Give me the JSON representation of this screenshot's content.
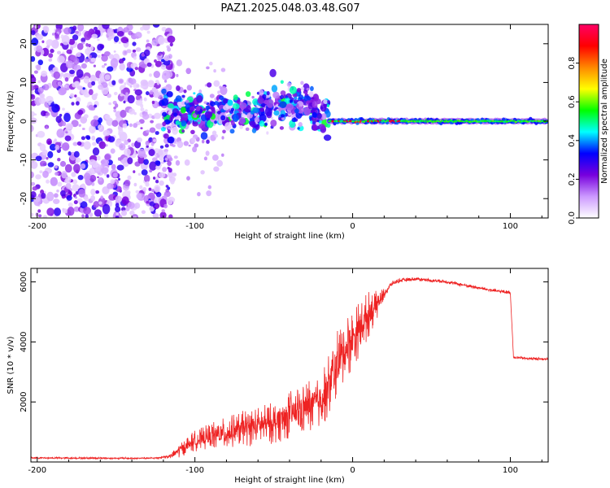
{
  "title": "PAZ1.2025.048.03.48.G07",
  "colors": {
    "snr_line": "#ee2222",
    "axis": "#000000"
  },
  "chart_data": [
    {
      "type": "heatmap",
      "xlabel": "Height of straight line (km)",
      "ylabel": "Frequency (Hz)",
      "xlim": [
        -204,
        124
      ],
      "ylim": [
        -25,
        25
      ],
      "xticks": [
        -200,
        -100,
        0,
        100
      ],
      "xtick_labels": [
        "-200",
        "-100",
        "0",
        "100"
      ],
      "yticks": [
        -20,
        -10,
        0,
        10,
        20
      ],
      "ytick_labels": [
        "-20",
        "-10",
        "0",
        "10",
        "20"
      ],
      "colorbar": {
        "label": "Normalized spectral amplitude",
        "range": [
          0,
          1
        ],
        "ticks": [
          0.0,
          0.2,
          0.4,
          0.6,
          0.8
        ],
        "tick_labels": [
          "0.0",
          "0.2",
          "0.4",
          "0.6",
          "0.8"
        ],
        "colormap": [
          "#ffffff",
          "#cc99ff",
          "#7700dd",
          "#0000ff",
          "#00ffff",
          "#00ff00",
          "#ffff00",
          "#ff8800",
          "#ff0000",
          "#ff0066"
        ]
      },
      "regions": [
        {
          "x": [
            -204,
            -120
          ],
          "freq_spread_hz": 25,
          "amplitude": 0.1
        },
        {
          "x": [
            -120,
            -15
          ],
          "freq_center_hz": 2,
          "freq_spread_hz": 6,
          "amplitude": 0.25
        },
        {
          "x": [
            -15,
            124
          ],
          "freq_center_hz": 0,
          "freq_spread_hz": 1.5,
          "amplitude": 0.5
        }
      ]
    },
    {
      "type": "line",
      "xlabel": "Height of straight line (km)",
      "ylabel": "SNR (10 * v/v)",
      "xlim": [
        -204,
        124
      ],
      "ylim": [
        0,
        6450
      ],
      "xticks": [
        -200,
        -100,
        0,
        100
      ],
      "xtick_labels": [
        "-200",
        "-100",
        "0",
        "100"
      ],
      "yticks": [
        2000,
        4000,
        6000
      ],
      "ytick_labels": [
        "2000",
        "4000",
        "6000"
      ],
      "x": [
        -204,
        -180,
        -160,
        -140,
        -125,
        -115,
        -110,
        -100,
        -90,
        -80,
        -70,
        -60,
        -50,
        -40,
        -30,
        -20,
        -15,
        -10,
        -5,
        0,
        5,
        10,
        15,
        20,
        25,
        30,
        40,
        50,
        60,
        70,
        80,
        90,
        100,
        102,
        104,
        110,
        124
      ],
      "y": [
        140,
        130,
        130,
        120,
        130,
        200,
        400,
        700,
        850,
        950,
        1100,
        1200,
        1300,
        1600,
        1800,
        2100,
        2600,
        3200,
        3700,
        4100,
        4500,
        4900,
        5200,
        5600,
        5950,
        6050,
        6100,
        6050,
        6000,
        5900,
        5800,
        5700,
        5650,
        3500,
        3480,
        3450,
        3430
      ],
      "noise": [
        30,
        30,
        30,
        30,
        30,
        80,
        250,
        350,
        450,
        550,
        600,
        650,
        700,
        800,
        900,
        1000,
        1100,
        1200,
        1100,
        1000,
        900,
        800,
        500,
        200,
        80,
        70,
        60,
        60,
        60,
        60,
        60,
        60,
        60,
        50,
        50,
        50,
        50
      ]
    }
  ]
}
